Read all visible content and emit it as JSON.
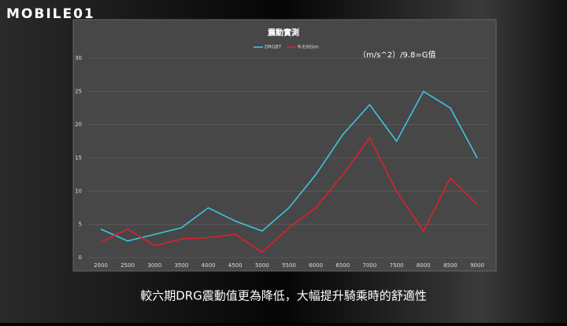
{
  "logo": "MOBILE01",
  "caption": "較六期DRG震動值更為降低，大幅提升騎乘時的舒適性",
  "chart_data": {
    "type": "line",
    "title": "震動實測",
    "annotation": "（m/s^2）/9.8=G值",
    "categories": [
      "2000",
      "2500",
      "3000",
      "3500",
      "4000",
      "4500",
      "5000",
      "5500",
      "6000",
      "6500",
      "7000",
      "7500",
      "8000",
      "8500",
      "9000"
    ],
    "series": [
      {
        "name": "DRGBT",
        "color": "#3ec4e0",
        "values": [
          4.3,
          2.5,
          3.5,
          4.5,
          7.5,
          5.5,
          4,
          7.5,
          12.5,
          18.5,
          23,
          17.5,
          25,
          22.5,
          15
        ]
      },
      {
        "name": "R-Edition",
        "color": "#e0202a",
        "values": [
          2.3,
          4.3,
          1.8,
          2.8,
          3.0,
          3.5,
          0.8,
          4.5,
          7.5,
          12.5,
          18,
          10,
          4,
          12,
          8
        ]
      }
    ],
    "ylim": [
      0,
      30
    ],
    "yticks": [
      0,
      5,
      10,
      15,
      20,
      25,
      30
    ],
    "grid": true
  }
}
